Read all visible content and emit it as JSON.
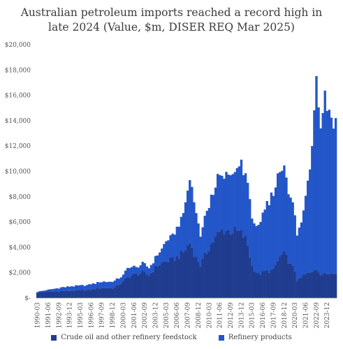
{
  "chart_data": {
    "type": "bar",
    "stacked": true,
    "title_line1": "Australian petroleum imports reached a record high in",
    "title_line2": "late 2024 (Value, $m, DISER REQ Mar 2025)",
    "yticks": [
      "$20,000",
      "$18,000",
      "$16,000",
      "$14,000",
      "$12,000",
      "$10,000",
      "$8,000",
      "$6,000",
      "$4,000",
      "$2,000",
      "$-"
    ],
    "ylim": [
      0,
      20000
    ],
    "xticks": [
      "1990-03",
      "1991-06",
      "1992-09",
      "1993-12",
      "1995-03",
      "1996-06",
      "1997-09",
      "1998-12",
      "2000-03",
      "2001-06",
      "2002-09",
      "2003-12",
      "2005-03",
      "2006-06",
      "2007-09",
      "2008-12",
      "2010-03",
      "2011-06",
      "2012-09",
      "2013-12",
      "2015-03",
      "2016-06",
      "2017-09",
      "2018-12",
      "2020-03",
      "2021-06",
      "2022-09",
      "2023-12"
    ],
    "legend_position": "bottom",
    "series": [
      {
        "name": "Crude oil and other refinery feedstock",
        "color": "#1f3c8f",
        "anchors": [
          [
            1990.0,
            450
          ],
          [
            1993.0,
            550
          ],
          [
            1996.0,
            650
          ],
          [
            1997.5,
            800
          ],
          [
            1998.9,
            800
          ],
          [
            2000.0,
            1300
          ],
          [
            2000.6,
            1700
          ],
          [
            2001.5,
            1900
          ],
          [
            2002.3,
            2000
          ],
          [
            2003.0,
            1800
          ],
          [
            2004.0,
            2600
          ],
          [
            2005.0,
            2900
          ],
          [
            2006.0,
            3100
          ],
          [
            2007.0,
            3600
          ],
          [
            2007.8,
            4400
          ],
          [
            2008.3,
            3400
          ],
          [
            2009.0,
            2600
          ],
          [
            2010.0,
            4000
          ],
          [
            2011.0,
            5000
          ],
          [
            2011.6,
            5400
          ],
          [
            2012.3,
            5300
          ],
          [
            2013.0,
            5300
          ],
          [
            2013.8,
            5100
          ],
          [
            2014.4,
            4500
          ],
          [
            2015.0,
            2500
          ],
          [
            2015.8,
            1800
          ],
          [
            2016.5,
            2100
          ],
          [
            2017.5,
            2200
          ],
          [
            2018.2,
            3200
          ],
          [
            2018.8,
            3500
          ],
          [
            2019.5,
            2600
          ],
          [
            2020.0,
            2200
          ],
          [
            2020.3,
            1300
          ],
          [
            2021.0,
            1800
          ],
          [
            2021.8,
            2000
          ],
          [
            2022.5,
            2400
          ],
          [
            2023.0,
            1700
          ],
          [
            2023.5,
            2100
          ],
          [
            2024.5,
            1900
          ],
          [
            2024.9,
            2000
          ]
        ]
      },
      {
        "name": "Refinery products",
        "color": "#2356c8",
        "anchors": [
          [
            1990.0,
            50
          ],
          [
            1993.0,
            300
          ],
          [
            1996.0,
            400
          ],
          [
            1997.5,
            500
          ],
          [
            1998.9,
            500
          ],
          [
            2000.0,
            500
          ],
          [
            2000.6,
            800
          ],
          [
            2001.5,
            500
          ],
          [
            2002.3,
            700
          ],
          [
            2003.0,
            600
          ],
          [
            2004.0,
            800
          ],
          [
            2005.0,
            1500
          ],
          [
            2006.0,
            2000
          ],
          [
            2007.0,
            3000
          ],
          [
            2007.8,
            5000
          ],
          [
            2008.3,
            4000
          ],
          [
            2009.0,
            2300
          ],
          [
            2010.0,
            3500
          ],
          [
            2011.0,
            4300
          ],
          [
            2011.6,
            4200
          ],
          [
            2012.3,
            4500
          ],
          [
            2013.0,
            4500
          ],
          [
            2013.8,
            5500
          ],
          [
            2014.4,
            4800
          ],
          [
            2015.0,
            4000
          ],
          [
            2015.8,
            3600
          ],
          [
            2016.5,
            4800
          ],
          [
            2017.5,
            6100
          ],
          [
            2018.2,
            6800
          ],
          [
            2018.8,
            6800
          ],
          [
            2019.5,
            5300
          ],
          [
            2020.0,
            4300
          ],
          [
            2020.3,
            3400
          ],
          [
            2021.0,
            5000
          ],
          [
            2021.8,
            8500
          ],
          [
            2022.5,
            15500
          ],
          [
            2023.0,
            12300
          ],
          [
            2023.5,
            14000
          ],
          [
            2024.5,
            12000
          ],
          [
            2024.9,
            11700
          ]
        ]
      }
    ]
  }
}
